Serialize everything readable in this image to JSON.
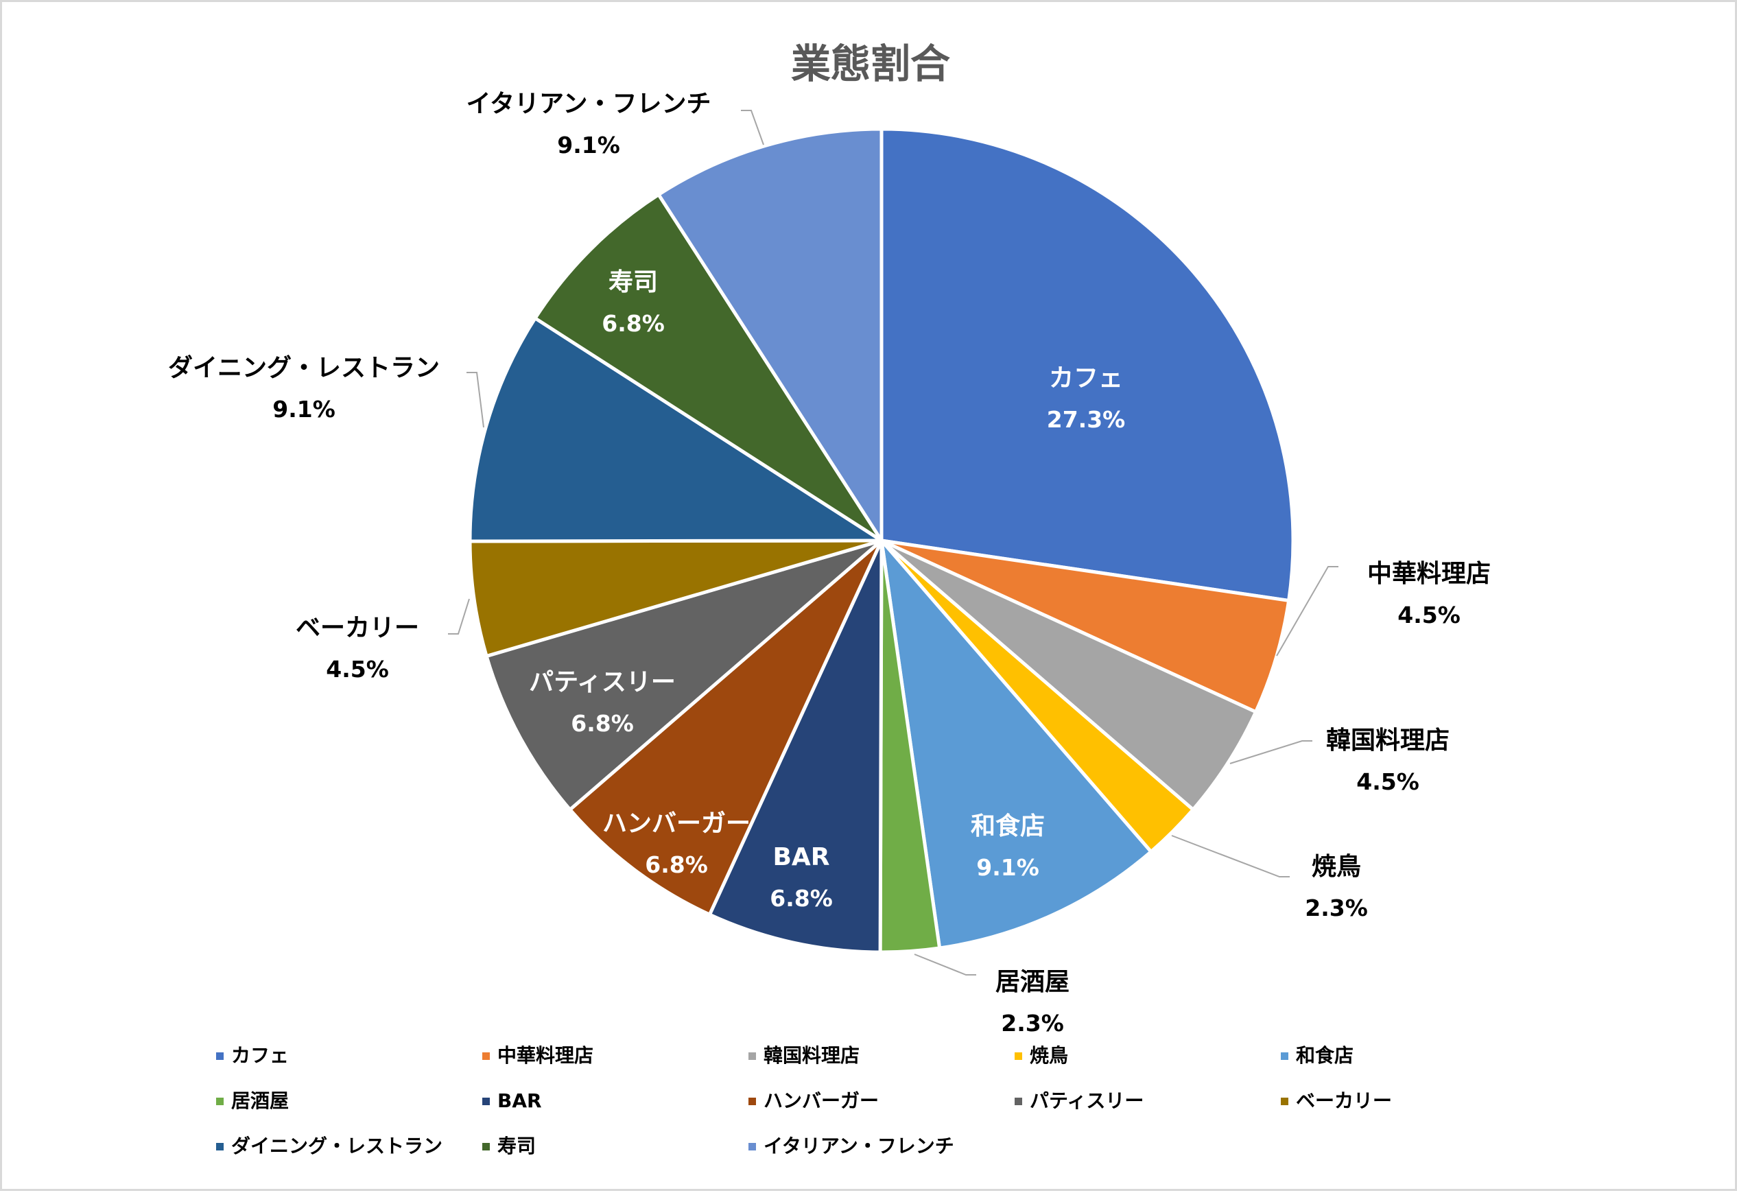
{
  "chart_data": {
    "type": "pie",
    "title": "業態割合",
    "categories": [
      "カフェ",
      "中華料理店",
      "韓国料理店",
      "焼鳥",
      "和食店",
      "居酒屋",
      "BAR",
      "ハンバーガー",
      "パティスリー",
      "ベーカリー",
      "ダイニング・レストラン",
      "寿司",
      "イタリアン・フレンチ"
    ],
    "values": [
      27.3,
      4.5,
      4.5,
      2.3,
      9.1,
      2.3,
      6.8,
      6.8,
      6.8,
      4.5,
      9.1,
      6.8,
      9.1
    ],
    "value_labels": [
      "27.3%",
      "4.5%",
      "4.5%",
      "2.3%",
      "9.1%",
      "2.3%",
      "6.8%",
      "6.8%",
      "6.8%",
      "4.5%",
      "9.1%",
      "6.8%",
      "9.1%"
    ],
    "colors": [
      "#4472C4",
      "#ED7D31",
      "#A5A5A5",
      "#FFC000",
      "#5B9BD5",
      "#70AD47",
      "#264478",
      "#9E480E",
      "#636363",
      "#997300",
      "#255E91",
      "#43682B",
      "#698ED0"
    ],
    "start_angle": "12 o'clock",
    "direction": "clockwise",
    "legend_position": "bottom"
  }
}
